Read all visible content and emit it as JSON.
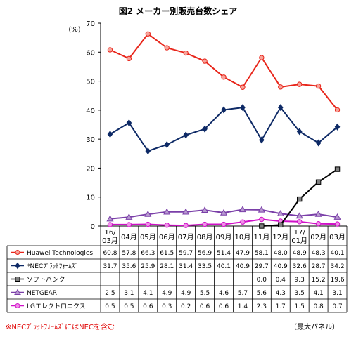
{
  "chart_data": {
    "type": "line",
    "title": "図2 メーカー別販売台数シェア",
    "unit_label": "(%)",
    "ylim": [
      0,
      70
    ],
    "yticks": [
      0,
      10,
      20,
      30,
      40,
      50,
      60,
      70
    ],
    "grid": false,
    "legend": "table-bottom",
    "categories": [
      {
        "top": "16/",
        "bottom": "03月"
      },
      {
        "top": "",
        "bottom": "04月"
      },
      {
        "top": "",
        "bottom": "05月"
      },
      {
        "top": "",
        "bottom": "06月"
      },
      {
        "top": "",
        "bottom": "07月"
      },
      {
        "top": "",
        "bottom": "08月"
      },
      {
        "top": "",
        "bottom": "09月"
      },
      {
        "top": "",
        "bottom": "10月"
      },
      {
        "top": "",
        "bottom": "11月"
      },
      {
        "top": "",
        "bottom": "12月"
      },
      {
        "top": "17/",
        "bottom": "01月"
      },
      {
        "top": "",
        "bottom": "02月"
      },
      {
        "top": "",
        "bottom": "03月"
      }
    ],
    "series": [
      {
        "name": "Huawei Technologies",
        "color": "#e8251a",
        "fill": "#f7a39a",
        "marker": "circle",
        "values": [
          60.8,
          57.8,
          66.3,
          61.5,
          59.7,
          56.9,
          51.4,
          47.9,
          58.1,
          48.0,
          48.9,
          48.3,
          40.1
        ]
      },
      {
        "name": "*NECﾌﾟﾗｯﾄﾌｫｰﾑｽﾞ",
        "color": "#0e2a66",
        "fill": "#0e2a66",
        "marker": "diamond",
        "values": [
          31.7,
          35.6,
          25.9,
          28.1,
          31.4,
          33.5,
          40.1,
          40.9,
          29.7,
          40.9,
          32.6,
          28.7,
          34.2
        ]
      },
      {
        "name": "ソフトバンク",
        "color": "#000000",
        "fill": "#7f7f7f",
        "marker": "square",
        "values": [
          null,
          null,
          null,
          null,
          null,
          null,
          null,
          null,
          0.0,
          0.4,
          9.3,
          15.2,
          19.6
        ]
      },
      {
        "name": "NETGEAR",
        "color": "#7a3fa8",
        "fill": "#b89ad0",
        "marker": "triangle",
        "values": [
          2.5,
          3.1,
          4.1,
          4.9,
          4.9,
          5.5,
          4.6,
          5.7,
          5.6,
          4.3,
          3.5,
          4.1,
          3.1
        ]
      },
      {
        "name": "LGエレクトロニクス",
        "color": "#d010c8",
        "fill": "#f090e8",
        "marker": "circle",
        "values": [
          0.5,
          0.5,
          0.6,
          0.3,
          0.2,
          0.6,
          0.6,
          1.4,
          2.3,
          1.7,
          1.5,
          0.8,
          0.7
        ]
      }
    ],
    "table": {
      "rows": [
        [
          "60.8",
          "57.8",
          "66.3",
          "61.5",
          "59.7",
          "56.9",
          "51.4",
          "47.9",
          "58.1",
          "48.0",
          "48.9",
          "48.3",
          "40.1"
        ],
        [
          "31.7",
          "35.6",
          "25.9",
          "28.1",
          "31.4",
          "33.5",
          "40.1",
          "40.9",
          "29.7",
          "40.9",
          "32.6",
          "28.7",
          "34.2"
        ],
        [
          "",
          "",
          "",
          "",
          "",
          "",
          "",
          "",
          "0.0",
          "0.4",
          "9.3",
          "15.2",
          "19.6"
        ],
        [
          "2.5",
          "3.1",
          "4.1",
          "4.9",
          "4.9",
          "5.5",
          "4.6",
          "5.7",
          "5.6",
          "4.3",
          "3.5",
          "4.1",
          "3.1"
        ],
        [
          "0.5",
          "0.5",
          "0.6",
          "0.3",
          "0.2",
          "0.6",
          "0.6",
          "1.4",
          "2.3",
          "1.7",
          "1.5",
          "0.8",
          "0.7"
        ]
      ]
    }
  },
  "footnote": "※NECﾌﾟﾗｯﾄﾌｫｰﾑｽﾞにはNECを含む",
  "panel_note": "（最大パネル）"
}
